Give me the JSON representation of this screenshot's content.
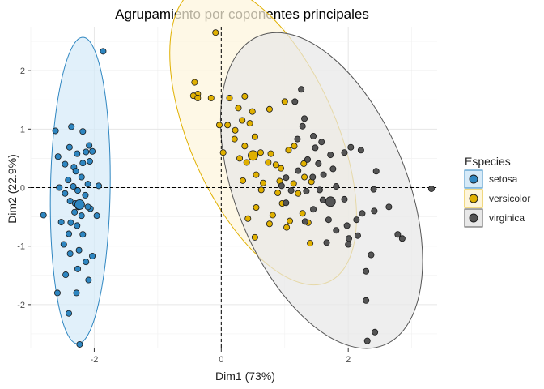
{
  "chart_data": {
    "type": "scatter",
    "title": "Agrupamiento por coponentes principales",
    "xlabel": "Dim1 (73%)",
    "ylabel": "Dim2 (22.9%)",
    "xlim": [
      -3.0,
      3.4
    ],
    "ylim": [
      -2.75,
      2.75
    ],
    "x_ticks": [
      -2,
      0,
      2
    ],
    "y_ticks": [
      -2,
      -1,
      0,
      1,
      2
    ],
    "grid": true,
    "reference_lines": {
      "x": 0,
      "y": 0,
      "style": "dashed"
    },
    "legend": {
      "title": "Especies",
      "position": "right"
    },
    "series": [
      {
        "name": "setosa",
        "color": "#2E86C1",
        "fill": "#D6EAF8",
        "ellipse": {
          "cx": -2.22,
          "cy": -0.05,
          "rx": 0.47,
          "ry": 2.62,
          "angle": 1
        },
        "centroid": [
          -2.23,
          -0.29
        ],
        "points": [
          [
            -1.86,
            2.33
          ],
          [
            -2.61,
            0.97
          ],
          [
            -2.36,
            1.04
          ],
          [
            -2.18,
            0.96
          ],
          [
            -2.08,
            0.72
          ],
          [
            -2.27,
            0.58
          ],
          [
            -2.03,
            0.62
          ],
          [
            -2.39,
            0.69
          ],
          [
            -2.13,
            0.61
          ],
          [
            -2.57,
            0.53
          ],
          [
            -2.46,
            0.4
          ],
          [
            -2.32,
            0.35
          ],
          [
            -2.18,
            0.42
          ],
          [
            -2.07,
            0.45
          ],
          [
            -2.29,
            0.28
          ],
          [
            -2.41,
            0.13
          ],
          [
            -2.2,
            0.18
          ],
          [
            -2.55,
            0.0
          ],
          [
            -2.33,
            0.02
          ],
          [
            -2.1,
            0.06
          ],
          [
            -1.93,
            0.03
          ],
          [
            -2.46,
            -0.1
          ],
          [
            -2.26,
            -0.05
          ],
          [
            -2.14,
            -0.13
          ],
          [
            -2.38,
            -0.23
          ],
          [
            -2.25,
            -0.33
          ],
          [
            -2.06,
            -0.36
          ],
          [
            -1.96,
            -0.48
          ],
          [
            -2.31,
            -0.42
          ],
          [
            -2.2,
            -0.48
          ],
          [
            -2.52,
            -0.59
          ],
          [
            -2.37,
            -0.6
          ],
          [
            -2.27,
            -0.65
          ],
          [
            -2.4,
            -0.79
          ],
          [
            -2.18,
            -0.8
          ],
          [
            -2.48,
            -0.97
          ],
          [
            -2.24,
            -1.07
          ],
          [
            -2.03,
            -1.17
          ],
          [
            -2.38,
            -1.13
          ],
          [
            -2.13,
            -1.27
          ],
          [
            -2.26,
            -1.39
          ],
          [
            -2.45,
            -1.49
          ],
          [
            -2.09,
            -1.58
          ],
          [
            -2.58,
            -1.8
          ],
          [
            -2.28,
            -1.8
          ],
          [
            -2.4,
            -2.15
          ],
          [
            -2.23,
            -2.68
          ],
          [
            -2.8,
            -0.47
          ],
          [
            -2.1,
            -0.33
          ],
          [
            -2.3,
            -0.27
          ]
        ]
      },
      {
        "name": "versicolor",
        "color": "#E0B000",
        "fill": "#FDF5DC",
        "ellipse": {
          "cx": 0.66,
          "cy": 0.9,
          "rx": 1.15,
          "ry": 2.75,
          "angle": -24
        },
        "centroid": [
          0.5,
          0.55
        ],
        "points": [
          [
            -0.09,
            2.65
          ],
          [
            -0.42,
            1.8
          ],
          [
            -0.37,
            1.6
          ],
          [
            -0.44,
            1.57
          ],
          [
            -0.37,
            1.53
          ],
          [
            -0.16,
            1.53
          ],
          [
            0.13,
            1.53
          ],
          [
            0.37,
            1.56
          ],
          [
            1.0,
            1.47
          ],
          [
            0.27,
            1.36
          ],
          [
            0.49,
            1.3
          ],
          [
            0.76,
            1.34
          ],
          [
            0.33,
            1.15
          ],
          [
            0.45,
            1.1
          ],
          [
            -0.03,
            1.07
          ],
          [
            0.1,
            1.07
          ],
          [
            0.22,
            0.98
          ],
          [
            0.21,
            0.83
          ],
          [
            0.37,
            0.71
          ],
          [
            0.53,
            0.87
          ],
          [
            0.62,
            0.6
          ],
          [
            0.78,
            0.58
          ],
          [
            1.06,
            0.64
          ],
          [
            1.15,
            0.71
          ],
          [
            0.29,
            0.5
          ],
          [
            0.4,
            0.43
          ],
          [
            0.74,
            0.43
          ],
          [
            0.86,
            0.39
          ],
          [
            0.94,
            0.33
          ],
          [
            1.3,
            0.41
          ],
          [
            0.03,
            0.6
          ],
          [
            0.55,
            0.22
          ],
          [
            0.34,
            0.12
          ],
          [
            0.66,
            0.08
          ],
          [
            0.92,
            0.11
          ],
          [
            1.14,
            0.07
          ],
          [
            1.31,
            0.18
          ],
          [
            1.42,
            0.1
          ],
          [
            0.63,
            -0.04
          ],
          [
            0.89,
            -0.09
          ],
          [
            1.21,
            -0.1
          ],
          [
            0.96,
            -0.27
          ],
          [
            0.55,
            -0.34
          ],
          [
            0.81,
            -0.47
          ],
          [
            1.28,
            -0.44
          ],
          [
            0.42,
            -0.53
          ],
          [
            0.76,
            -0.62
          ],
          [
            1.08,
            -0.57
          ],
          [
            1.37,
            -0.6
          ],
          [
            0.53,
            -0.85
          ],
          [
            1.4,
            -0.95
          ],
          [
            1.03,
            -0.68
          ]
        ]
      },
      {
        "name": "virginica",
        "color": "#555555",
        "fill": "#E8E8E8",
        "ellipse": {
          "cx": 1.58,
          "cy": -0.05,
          "rx": 1.35,
          "ry": 2.85,
          "angle": -22
        },
        "centroid": [
          1.72,
          -0.24
        ],
        "points": [
          [
            1.26,
            1.68
          ],
          [
            1.16,
            1.47
          ],
          [
            1.31,
            1.18
          ],
          [
            1.28,
            1.05
          ],
          [
            1.2,
            0.83
          ],
          [
            1.45,
            0.88
          ],
          [
            1.58,
            0.78
          ],
          [
            2.04,
            0.69
          ],
          [
            2.2,
            0.64
          ],
          [
            1.48,
            0.68
          ],
          [
            1.72,
            0.56
          ],
          [
            1.94,
            0.6
          ],
          [
            1.36,
            0.48
          ],
          [
            1.53,
            0.41
          ],
          [
            1.21,
            0.29
          ],
          [
            1.76,
            0.32
          ],
          [
            1.02,
            0.17
          ],
          [
            1.44,
            0.18
          ],
          [
            1.61,
            0.22
          ],
          [
            0.95,
            0.03
          ],
          [
            1.1,
            -0.05
          ],
          [
            1.34,
            -0.06
          ],
          [
            1.55,
            -0.04
          ],
          [
            1.81,
            0.02
          ],
          [
            2.4,
            -0.03
          ],
          [
            2.44,
            0.28
          ],
          [
            1.02,
            -0.26
          ],
          [
            1.45,
            -0.37
          ],
          [
            1.94,
            -0.2
          ],
          [
            2.22,
            -0.44
          ],
          [
            1.32,
            -0.58
          ],
          [
            1.69,
            -0.55
          ],
          [
            1.98,
            -0.65
          ],
          [
            2.41,
            -0.4
          ],
          [
            2.64,
            -0.33
          ],
          [
            2.13,
            -0.55
          ],
          [
            1.81,
            -0.73
          ],
          [
            2.01,
            -0.87
          ],
          [
            2.15,
            -0.82
          ],
          [
            2.0,
            -0.97
          ],
          [
            1.66,
            -0.94
          ],
          [
            2.78,
            -0.8
          ],
          [
            2.85,
            -0.87
          ],
          [
            2.36,
            -1.15
          ],
          [
            2.28,
            -1.43
          ],
          [
            2.28,
            -1.93
          ],
          [
            2.42,
            -2.47
          ],
          [
            2.3,
            -2.62
          ],
          [
            3.31,
            -0.02
          ],
          [
            1.6,
            -0.21
          ]
        ]
      }
    ]
  }
}
